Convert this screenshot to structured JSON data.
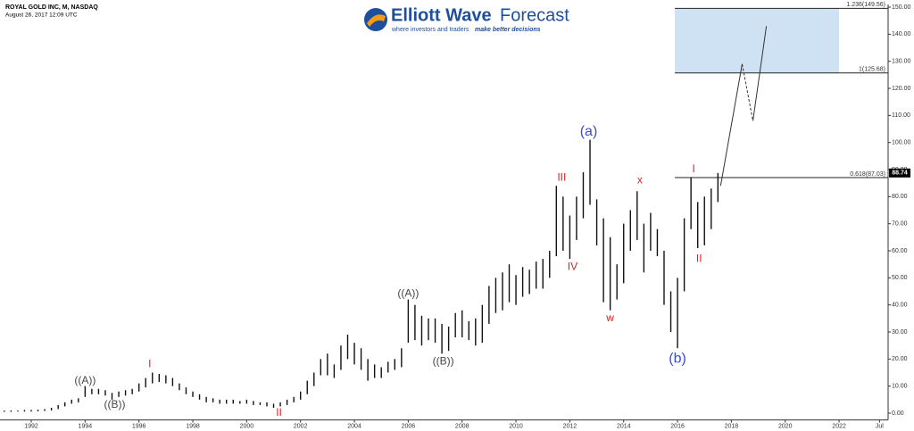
{
  "logo": {
    "brand": "Elliott Wave",
    "brand_suffix": "Forecast",
    "tagline": "where investors and traders",
    "tagline_bold": "make better decisions"
  },
  "chart_data": {
    "type": "hilo",
    "title": "ROYAL GOLD INC, M, NASDAQ",
    "subtitle": "August 26, 2017 12:09 UTC",
    "color": "#111111",
    "x": [
      1991,
      1991.25,
      1991.5,
      1991.75,
      1992,
      1992.25,
      1992.5,
      1992.75,
      1993,
      1993.25,
      1993.5,
      1993.75,
      1994,
      1994.25,
      1994.5,
      1994.75,
      1995,
      1995.25,
      1995.5,
      1995.75,
      1996,
      1996.25,
      1996.5,
      1996.75,
      1997,
      1997.25,
      1997.5,
      1997.75,
      1998,
      1998.25,
      1998.5,
      1998.75,
      1999,
      1999.25,
      1999.5,
      1999.75,
      2000,
      2000.25,
      2000.5,
      2000.75,
      2001,
      2001.25,
      2001.5,
      2001.75,
      2002,
      2002.25,
      2002.5,
      2002.75,
      2003,
      2003.25,
      2003.5,
      2003.75,
      2004,
      2004.25,
      2004.5,
      2004.75,
      2005,
      2005.25,
      2005.5,
      2005.75,
      2006,
      2006.25,
      2006.5,
      2006.75,
      2007,
      2007.25,
      2007.5,
      2007.75,
      2008,
      2008.25,
      2008.5,
      2008.75,
      2009,
      2009.25,
      2009.5,
      2009.75,
      2010,
      2010.25,
      2010.5,
      2010.75,
      2011,
      2011.25,
      2011.5,
      2011.75,
      2012,
      2012.25,
      2012.5,
      2012.75,
      2013,
      2013.25,
      2013.5,
      2013.75,
      2014,
      2014.25,
      2014.5,
      2014.75,
      2015,
      2015.25,
      2015.5,
      2015.75,
      2016,
      2016.25,
      2016.5,
      2016.75,
      2017,
      2017.25,
      2017.5
    ],
    "high": [
      1.0,
      1.0,
      1.0,
      1.2,
      1.2,
      1.3,
      1.5,
      2.0,
      3.0,
      4.0,
      5.0,
      5.5,
      10.0,
      9.0,
      9.0,
      8.5,
      7.5,
      8.0,
      8.5,
      9.0,
      11.0,
      13.0,
      15.0,
      14.5,
      14.0,
      13.0,
      11.0,
      9.5,
      8.0,
      7.0,
      6.0,
      5.5,
      5.0,
      5.0,
      5.0,
      4.5,
      5.0,
      4.5,
      4.0,
      4.0,
      3.5,
      4.0,
      5.0,
      6.0,
      8.0,
      12.0,
      15.0,
      20.0,
      22.0,
      18.0,
      25.0,
      29.0,
      26.0,
      24.0,
      20.0,
      18.0,
      17.0,
      19.0,
      20.0,
      24.0,
      42.0,
      40.0,
      36.0,
      35.0,
      35.0,
      33.0,
      32.0,
      37.0,
      38.0,
      34.0,
      35.0,
      40.0,
      47.0,
      50.0,
      52.0,
      55.0,
      51.0,
      54.0,
      53.0,
      56.0,
      57.0,
      60.0,
      84.0,
      80.0,
      73.0,
      80.0,
      89.0,
      101.0,
      79.0,
      72.0,
      65.0,
      55.0,
      70.0,
      75.0,
      82.0,
      70.0,
      74.0,
      68.0,
      60.0,
      45.0,
      50.0,
      72.0,
      87.0,
      78.0,
      80.0,
      83.0,
      88.74
    ],
    "low": [
      0.5,
      0.5,
      0.6,
      0.6,
      0.6,
      0.7,
      0.8,
      1.0,
      1.5,
      2.5,
      3.5,
      4.0,
      6.0,
      7.0,
      7.0,
      6.5,
      5.0,
      6.0,
      6.5,
      7.0,
      8.0,
      9.5,
      11.0,
      11.5,
      11.0,
      10.0,
      8.5,
      7.0,
      6.0,
      5.0,
      4.0,
      4.0,
      3.5,
      3.5,
      3.5,
      3.5,
      3.5,
      3.0,
      3.0,
      2.5,
      2.0,
      2.5,
      3.0,
      4.0,
      5.0,
      7.0,
      10.0,
      14.0,
      14.0,
      13.0,
      16.0,
      20.0,
      18.0,
      16.0,
      12.0,
      13.0,
      13.0,
      15.0,
      16.0,
      17.0,
      26.0,
      27.0,
      25.0,
      27.0,
      26.0,
      22.0,
      23.0,
      28.0,
      28.0,
      27.0,
      25.0,
      26.0,
      33.0,
      37.0,
      38.0,
      41.0,
      40.0,
      43.0,
      44.0,
      46.0,
      46.0,
      50.0,
      58.0,
      60.0,
      57.0,
      64.0,
      72.0,
      77.0,
      62.0,
      41.0,
      38.0,
      42.0,
      48.0,
      60.0,
      64.0,
      52.0,
      60.0,
      58.0,
      40.0,
      30.0,
      24.0,
      45.0,
      68.0,
      61.0,
      62.0,
      68.0,
      78.0
    ],
    "last_price": 88.74,
    "xlim": [
      1990.84,
      2023.82
    ],
    "xticks": [
      1992,
      1994,
      1996,
      1998,
      2000,
      2002,
      2004,
      2006,
      2008,
      2010,
      2012,
      2014,
      2016,
      2018,
      2020,
      2022,
      {
        "value": 2023.5,
        "label": "Jul"
      }
    ],
    "ylim": [
      -2.5,
      151
    ],
    "yticks": [
      {
        "value": 0,
        "label": "0.00"
      },
      {
        "value": 10,
        "label": "10.00"
      },
      {
        "value": 20,
        "label": "20.00"
      },
      {
        "value": 30,
        "label": "30.00"
      },
      {
        "value": 40,
        "label": "40.00"
      },
      {
        "value": 50,
        "label": "50.00"
      },
      {
        "value": 60,
        "label": "60.00"
      },
      {
        "value": 70,
        "label": "70.00"
      },
      {
        "value": 80,
        "label": "80.00"
      },
      {
        "value": 90,
        "label": "90.00"
      },
      {
        "value": 100,
        "label": "100.00"
      },
      {
        "value": 110,
        "label": "110.00"
      },
      {
        "value": 120,
        "label": "120.00"
      },
      {
        "value": 130,
        "label": "130.00"
      },
      {
        "value": 140,
        "label": "140.00"
      },
      {
        "value": 150,
        "label": "150.00"
      }
    ],
    "fib_levels": [
      {
        "value": 149.56,
        "label": "1.236(149.56)"
      },
      {
        "value": 125.68,
        "label": "1(125.68)"
      },
      {
        "value": 87.03,
        "label": "0.618(87.03)"
      }
    ],
    "fib_start_x": 2015.9,
    "target_zone": {
      "x": [
        2015.9,
        2022
      ],
      "color": "#cfe2f3"
    },
    "projection": {
      "x": [
        2017.6,
        2018.4,
        2018.8,
        2019.3
      ],
      "y": [
        84,
        129,
        108,
        143
      ],
      "dashed_segment": 1
    },
    "annotations": [
      {
        "text": "((A))",
        "x": 1994.0,
        "y": 12,
        "color": "#444444"
      },
      {
        "text": "((B))",
        "x": 1995.1,
        "y": 3,
        "color": "#444444"
      },
      {
        "text": "I",
        "x": 1996.4,
        "y": 18,
        "color": "#e02020"
      },
      {
        "text": "II",
        "x": 2001.2,
        "y": 0,
        "color": "#e02020"
      },
      {
        "text": "((A))",
        "x": 2006.0,
        "y": 44,
        "color": "#444444"
      },
      {
        "text": "((B))",
        "x": 2007.3,
        "y": 19,
        "color": "#444444"
      },
      {
        "text": "III",
        "x": 2011.7,
        "y": 87,
        "color": "#e02020"
      },
      {
        "text": "IV",
        "x": 2012.1,
        "y": 54,
        "color": "#e02020"
      },
      {
        "text": "(a)",
        "x": 2012.7,
        "y": 104,
        "color": "#3b4fc4"
      },
      {
        "text": "w",
        "x": 2013.5,
        "y": 35,
        "color": "#e02020"
      },
      {
        "text": "x",
        "x": 2014.6,
        "y": 86,
        "color": "#e02020"
      },
      {
        "text": "(b)",
        "x": 2016.0,
        "y": 20,
        "color": "#3b4fc4"
      },
      {
        "text": "I",
        "x": 2016.6,
        "y": 90,
        "color": "#e02020"
      },
      {
        "text": "II",
        "x": 2016.8,
        "y": 57,
        "color": "#e02020"
      }
    ]
  }
}
